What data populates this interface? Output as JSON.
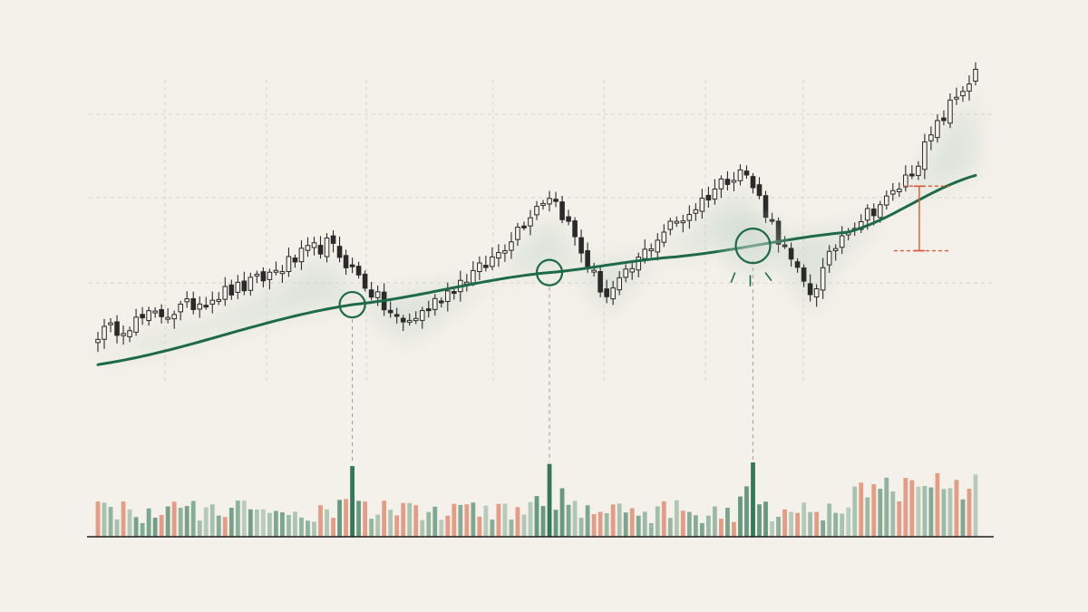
{
  "chart_data": {
    "type": "candlestick",
    "title": "",
    "xlabel": "",
    "ylabel": "",
    "grid": true,
    "legend": "none",
    "colors": {
      "background": "#f4f1ea",
      "candle": "#2a2a2a",
      "moving_average": "#1e6a47",
      "volume_up": "#4f8a6b",
      "volume_down": "#e0876e",
      "annotation": "#d9573a",
      "grid": "#d6d2c8",
      "baseline": "#1c1c1c",
      "shadow": "#c9d8cc"
    },
    "price_range": [
      0,
      100
    ],
    "volume_range": [
      0,
      100
    ],
    "candles": {
      "count": 139,
      "anchor_index": [
        0,
        10,
        22,
        36,
        48,
        60,
        71,
        80,
        90,
        101,
        112,
        118,
        124,
        138
      ],
      "anchor_close": [
        18,
        24,
        32,
        46,
        21,
        38,
        62,
        30,
        52,
        70,
        31,
        52,
        60,
        100
      ]
    },
    "moving_average": {
      "anchor_index": [
        0,
        40,
        70,
        90,
        118,
        138
      ],
      "anchor_value": [
        8,
        27,
        37,
        42,
        50,
        68
      ]
    },
    "volume": {
      "count": 139,
      "spike_index": [
        40,
        71,
        103
      ],
      "spike_value": [
        95,
        98,
        100
      ]
    },
    "touch_points": [
      {
        "index": 40,
        "value": 26
      },
      {
        "index": 71,
        "value": 35
      },
      {
        "index": 103,
        "value": 44
      }
    ],
    "gap_marker": {
      "index": 134,
      "ma_value": 68,
      "low_value": 51
    }
  }
}
